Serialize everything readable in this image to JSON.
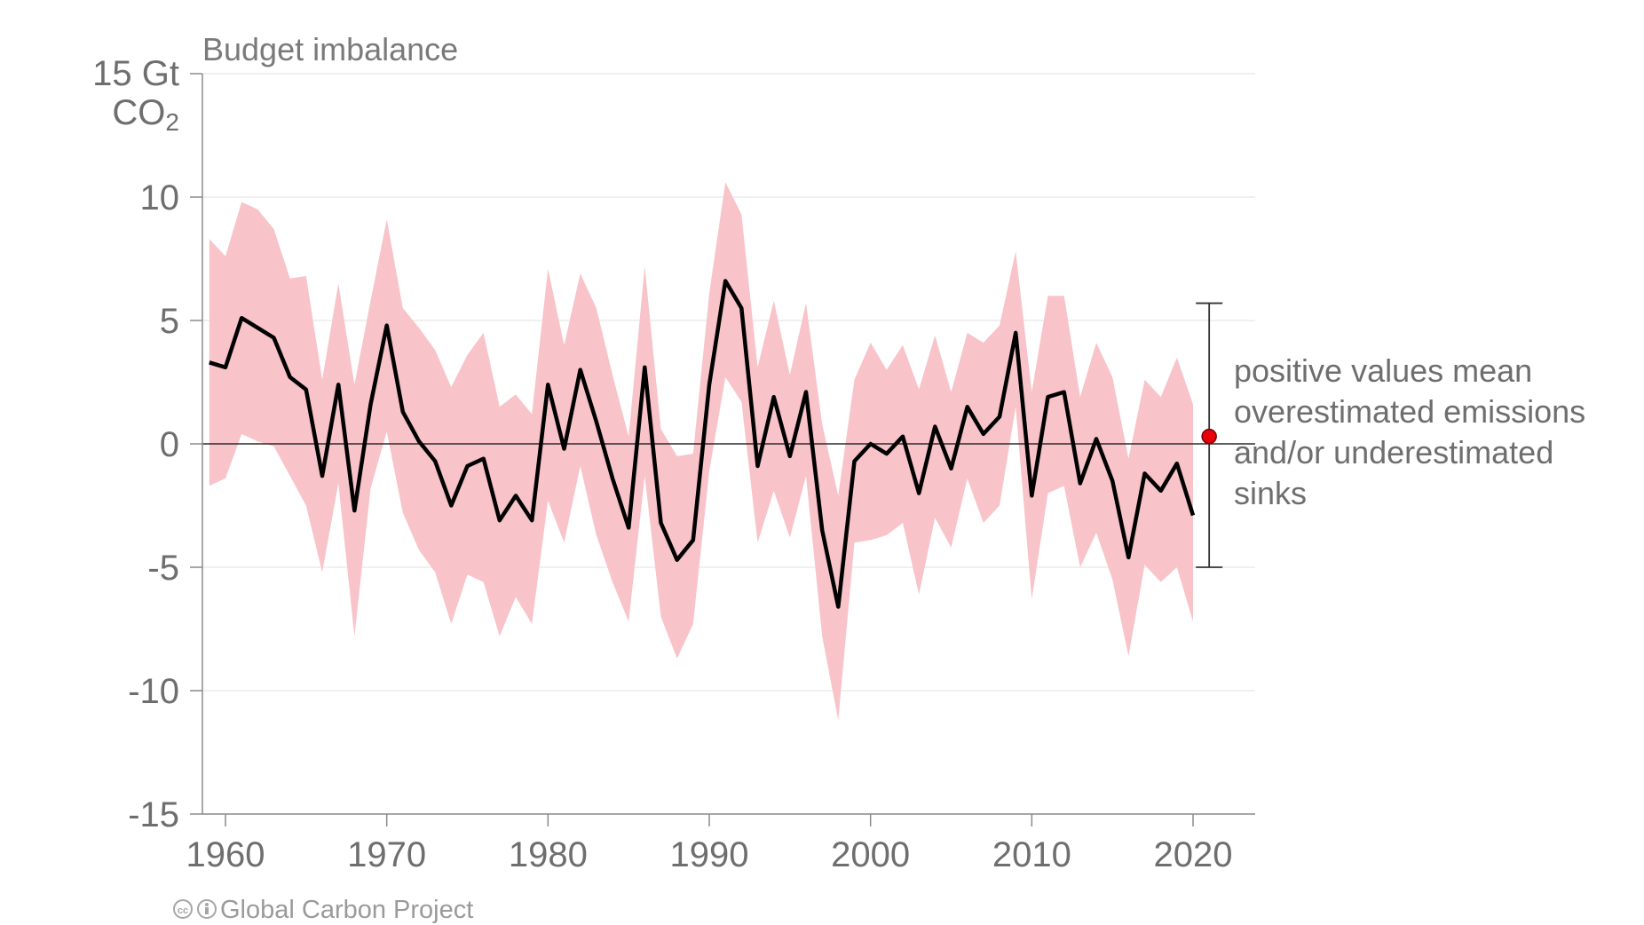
{
  "chart_data": {
    "type": "line",
    "title": "Budget imbalance",
    "y_unit_line1": "15 Gt",
    "y_unit_line2_main": "CO",
    "y_unit_line2_sub": "2",
    "xlim": [
      1958.5,
      2024
    ],
    "ylim": [
      -15,
      15
    ],
    "x_ticks": [
      1960,
      1970,
      1980,
      1990,
      2000,
      2010,
      2020
    ],
    "x_tick_labels": [
      "1960",
      "1970",
      "1980",
      "1990",
      "2000",
      "2010",
      "2020"
    ],
    "y_ticks": [
      -15,
      -10,
      -5,
      0,
      5,
      10
    ],
    "y_tick_labels": [
      "-15",
      "-10",
      "-5",
      "0",
      "5",
      "10"
    ],
    "grid": true,
    "x": [
      1959,
      1960,
      1961,
      1962,
      1963,
      1964,
      1965,
      1966,
      1967,
      1968,
      1969,
      1970,
      1971,
      1972,
      1973,
      1974,
      1975,
      1976,
      1977,
      1978,
      1979,
      1980,
      1981,
      1982,
      1983,
      1984,
      1985,
      1986,
      1987,
      1988,
      1989,
      1990,
      1991,
      1992,
      1993,
      1994,
      1995,
      1996,
      1997,
      1998,
      1999,
      2000,
      2001,
      2002,
      2003,
      2004,
      2005,
      2006,
      2007,
      2008,
      2009,
      2010,
      2011,
      2012,
      2013,
      2014,
      2015,
      2016,
      2017,
      2018,
      2019,
      2020
    ],
    "series": [
      {
        "values": [
          3.3,
          3.1,
          5.1,
          4.7,
          4.3,
          2.7,
          2.2,
          -1.3,
          2.4,
          -2.7,
          1.6,
          4.8,
          1.3,
          0.1,
          -0.7,
          -2.5,
          -0.9,
          -0.6,
          -3.1,
          -2.1,
          -3.1,
          2.4,
          -0.2,
          3.0,
          0.9,
          -1.4,
          -3.4,
          3.1,
          -3.2,
          -4.7,
          -3.9,
          2.4,
          6.6,
          5.5,
          -0.9,
          1.9,
          -0.5,
          2.1,
          -3.5,
          -6.6,
          -0.7,
          0.0,
          -0.4,
          0.3,
          -2.0,
          0.7,
          -1.0,
          1.5,
          0.4,
          1.1,
          4.5,
          -2.1,
          1.9,
          2.1,
          -1.6,
          0.2,
          -1.5,
          -4.6,
          -1.2,
          -1.9,
          -0.8,
          -2.9
        ],
        "upper": [
          8.3,
          7.6,
          9.8,
          9.5,
          8.7,
          6.7,
          6.8,
          2.6,
          6.5,
          2.4,
          5.8,
          9.1,
          5.5,
          4.7,
          3.8,
          2.3,
          3.6,
          4.5,
          1.5,
          2.0,
          1.2,
          7.1,
          4.0,
          6.9,
          5.5,
          2.8,
          0.3,
          7.2,
          0.6,
          -0.5,
          -0.4,
          6.1,
          10.6,
          9.3,
          3.1,
          5.8,
          2.8,
          5.7,
          0.8,
          -2.1,
          2.6,
          4.1,
          3.0,
          4.0,
          2.2,
          4.4,
          2.1,
          4.5,
          4.1,
          4.8,
          7.8,
          2.1,
          6.0,
          6.0,
          1.9,
          4.1,
          2.7,
          -0.6,
          2.6,
          1.9,
          3.5,
          1.6
        ],
        "lower": [
          -1.7,
          -1.4,
          0.4,
          0.1,
          -0.1,
          -1.3,
          -2.5,
          -5.2,
          -1.6,
          -7.8,
          -1.8,
          0.5,
          -2.8,
          -4.3,
          -5.2,
          -7.3,
          -5.3,
          -5.6,
          -7.8,
          -6.2,
          -7.3,
          -2.3,
          -4.0,
          -0.9,
          -3.7,
          -5.6,
          -7.2,
          -1.3,
          -7.0,
          -8.7,
          -7.3,
          -1.1,
          2.7,
          1.7,
          -4.0,
          -1.9,
          -3.8,
          -1.3,
          -7.8,
          -11.2,
          -4.0,
          -3.9,
          -3.7,
          -3.2,
          -6.1,
          -3.0,
          -4.2,
          -1.4,
          -3.2,
          -2.5,
          1.5,
          -6.3,
          -2.0,
          -1.7,
          -5.0,
          -3.6,
          -5.5,
          -8.6,
          -4.9,
          -5.6,
          -5.0,
          -7.2
        ]
      }
    ],
    "band_color": "#f8c3c9",
    "line_color": "#000000",
    "estimate": {
      "x": 2021,
      "value": 0.3,
      "upper": 5.7,
      "lower": -5.0,
      "point_color": "#e8000b"
    },
    "annotation_lines": [
      "positive values mean",
      "overestimated emissions",
      "and/or underestimated",
      "sinks"
    ]
  },
  "footer": {
    "credit": "Global Carbon Project",
    "license_icon": "creative-commons-by-icon"
  }
}
